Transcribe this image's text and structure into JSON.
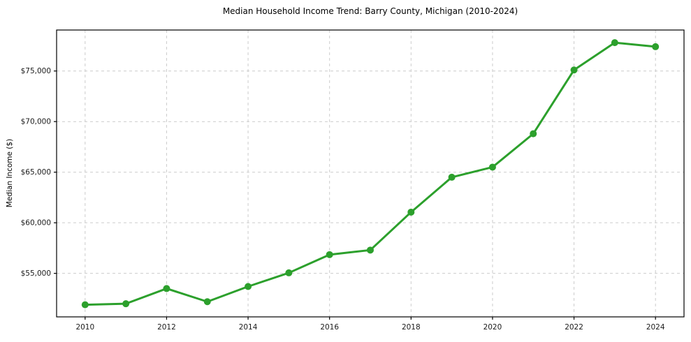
{
  "chart_data": {
    "type": "line",
    "title": "Median Household Income Trend: Barry County, Michigan (2010-2024)",
    "xlabel": "",
    "ylabel": "Median Income ($)",
    "x": [
      2010,
      2011,
      2012,
      2013,
      2014,
      2015,
      2016,
      2017,
      2018,
      2019,
      2020,
      2021,
      2022,
      2023,
      2024
    ],
    "values": [
      51900,
      52000,
      53500,
      52200,
      53700,
      55050,
      56850,
      57300,
      61050,
      64500,
      65500,
      68800,
      75100,
      77800,
      77400
    ],
    "xlim": [
      2009.3,
      2024.7
    ],
    "ylim": [
      50700,
      79050
    ],
    "xticks": [
      2010,
      2012,
      2014,
      2016,
      2018,
      2020,
      2022,
      2024
    ],
    "xtick_labels": [
      "2010",
      "2012",
      "2014",
      "2016",
      "2018",
      "2020",
      "2022",
      "2024"
    ],
    "yticks": [
      55000,
      60000,
      65000,
      70000,
      75000
    ],
    "ytick_labels": [
      "$55,000",
      "$60,000",
      "$65,000",
      "$70,000",
      "$75,000"
    ],
    "grid": true,
    "grid_style": "dashed",
    "legend": false,
    "marker": "circle",
    "line_color": "#2ca02c",
    "grid_color": "#cccccc",
    "axis_color": "#000000",
    "tick_label_color": "#1a1a1a",
    "background_color": "#ffffff"
  }
}
